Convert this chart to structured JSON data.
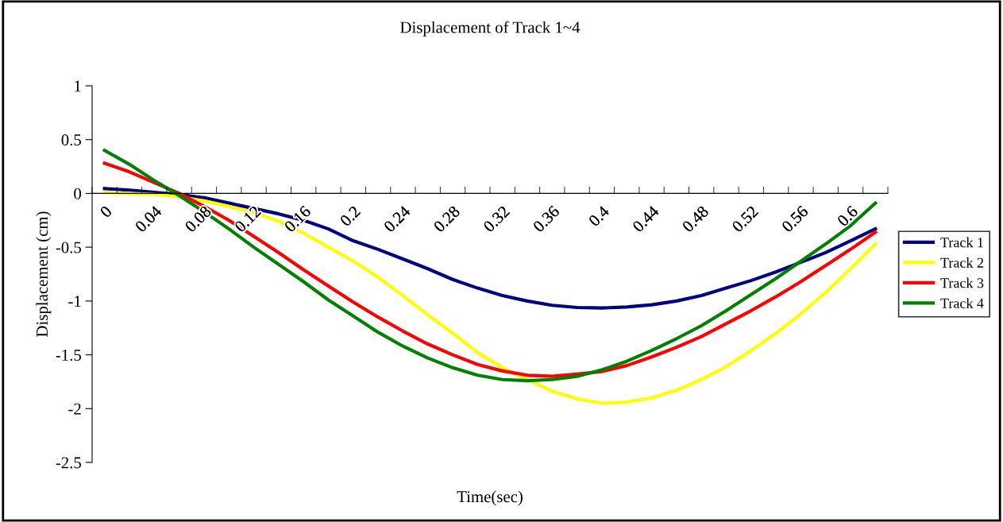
{
  "chart_data": {
    "type": "line",
    "title": "Displacement of Track 1~4",
    "xlabel": "Time(sec)",
    "ylabel": "Displacement (cm)",
    "categories": [
      "0",
      null,
      "0.04",
      null,
      "0.08",
      null,
      "0.12",
      null,
      "0.16",
      null,
      "0.2",
      null,
      "0.24",
      null,
      "0.28",
      null,
      "0.32",
      null,
      "0.36",
      null,
      "0.4",
      null,
      "0.44",
      null,
      "0.48",
      null,
      "0.52",
      null,
      "0.56",
      null,
      "0.6",
      null
    ],
    "series": [
      {
        "name": "Track 1",
        "color": "#000080",
        "values": [
          0.045,
          0.03,
          0.01,
          -0.01,
          -0.04,
          -0.09,
          -0.14,
          -0.19,
          -0.25,
          -0.33,
          -0.44,
          -0.52,
          -0.61,
          -0.7,
          -0.8,
          -0.88,
          -0.95,
          -1.0,
          -1.04,
          -1.06,
          -1.065,
          -1.055,
          -1.035,
          -1.0,
          -0.95,
          -0.88,
          -0.81,
          -0.73,
          -0.64,
          -0.55,
          -0.44,
          -0.33
        ]
      },
      {
        "name": "Track 2",
        "color": "#ffff00",
        "values": [
          0.01,
          0.0,
          -0.01,
          -0.03,
          -0.07,
          -0.12,
          -0.18,
          -0.26,
          -0.37,
          -0.5,
          -0.63,
          -0.78,
          -0.95,
          -1.13,
          -1.3,
          -1.48,
          -1.62,
          -1.73,
          -1.84,
          -1.91,
          -1.95,
          -1.94,
          -1.9,
          -1.83,
          -1.73,
          -1.61,
          -1.46,
          -1.3,
          -1.12,
          -0.92,
          -0.7,
          -0.47
        ]
      },
      {
        "name": "Track 3",
        "color": "#ff0000",
        "values": [
          0.28,
          0.2,
          0.1,
          0.0,
          -0.12,
          -0.25,
          -0.4,
          -0.55,
          -0.71,
          -0.86,
          -1.01,
          -1.15,
          -1.28,
          -1.4,
          -1.5,
          -1.59,
          -1.65,
          -1.69,
          -1.7,
          -1.68,
          -1.655,
          -1.6,
          -1.52,
          -1.43,
          -1.33,
          -1.21,
          -1.09,
          -0.96,
          -0.82,
          -0.67,
          -0.52,
          -0.36
        ]
      },
      {
        "name": "Track 4",
        "color": "#008000",
        "values": [
          0.4,
          0.27,
          0.12,
          -0.02,
          -0.17,
          -0.33,
          -0.5,
          -0.66,
          -0.82,
          -0.99,
          -1.14,
          -1.29,
          -1.42,
          -1.53,
          -1.62,
          -1.69,
          -1.73,
          -1.74,
          -1.73,
          -1.7,
          -1.64,
          -1.56,
          -1.46,
          -1.35,
          -1.23,
          -1.09,
          -0.94,
          -0.79,
          -0.63,
          -0.47,
          -0.3,
          -0.09
        ]
      }
    ],
    "ylim": [
      -2.5,
      1
    ],
    "yticks": [
      -2.5,
      -2,
      -1.5,
      -1,
      -0.5,
      0,
      0.5,
      1
    ],
    "grid": false,
    "legend": "right",
    "marker": "none",
    "line_style": "solid"
  }
}
